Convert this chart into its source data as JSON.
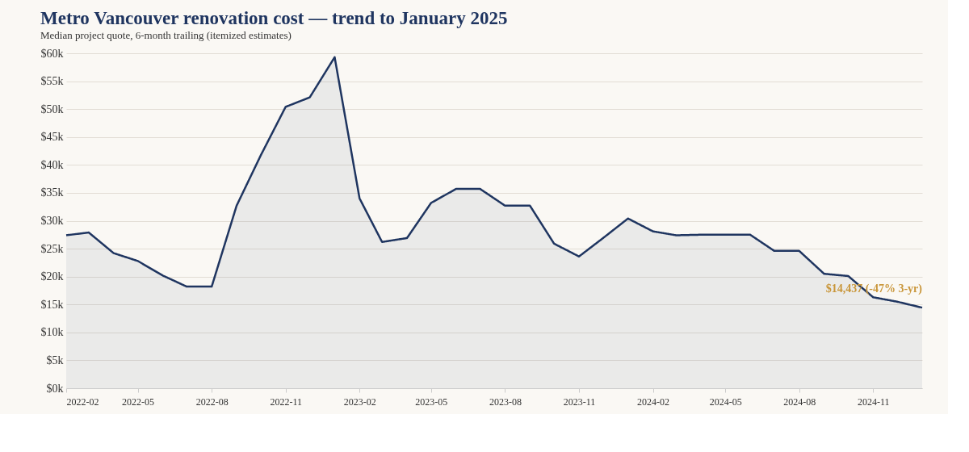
{
  "chart_data": {
    "type": "area",
    "title": "Metro Vancouver renovation cost — trend to January 2025",
    "subtitle": "Median project quote, 6-month trailing (itemized estimates)",
    "x": [
      "2022-02",
      "2022-03",
      "2022-04",
      "2022-05",
      "2022-06",
      "2022-07",
      "2022-08",
      "2022-09",
      "2022-10",
      "2022-11",
      "2022-12",
      "2023-01",
      "2023-02",
      "2023-03",
      "2023-04",
      "2023-05",
      "2023-06",
      "2023-07",
      "2023-08",
      "2023-09",
      "2023-10",
      "2023-11",
      "2023-12",
      "2024-01",
      "2024-02",
      "2024-03",
      "2024-04",
      "2024-05",
      "2024-06",
      "2024-07",
      "2024-08",
      "2024-09",
      "2024-10",
      "2024-11",
      "2024-12",
      "2025-01"
    ],
    "series": [
      {
        "color": "#1f3560",
        "values": [
          27.4,
          27.9,
          24.2,
          22.8,
          20.2,
          18.2,
          18.2,
          32.7,
          41.7,
          50.4,
          52.1,
          59.3,
          34.0,
          26.2,
          26.9,
          33.2,
          35.7,
          35.7,
          32.7,
          32.7,
          25.9,
          23.6,
          26.9,
          30.4,
          28.1,
          27.4,
          27.5,
          27.5,
          27.5,
          24.6,
          24.6,
          20.5,
          20.1,
          16.3,
          15.5,
          14.437
        ]
      }
    ],
    "xlim": [
      "2022-02",
      "2025-01"
    ],
    "xticks": [
      "2022-02",
      "2022-05",
      "2022-08",
      "2022-11",
      "2023-02",
      "2023-05",
      "2023-08",
      "2023-11",
      "2024-02",
      "2024-05",
      "2024-08",
      "2024-11"
    ],
    "ylim": [
      0,
      60
    ],
    "yticks": [
      {
        "value": 0,
        "label": "$0k"
      },
      {
        "value": 5,
        "label": "$5k"
      },
      {
        "value": 10,
        "label": "$10k"
      },
      {
        "value": 15,
        "label": "$15k"
      },
      {
        "value": 20,
        "label": "$20k"
      },
      {
        "value": 25,
        "label": "$25k"
      },
      {
        "value": 30,
        "label": "$30k"
      },
      {
        "value": 35,
        "label": "$35k"
      },
      {
        "value": 40,
        "label": "$40k"
      },
      {
        "value": 45,
        "label": "$45k"
      },
      {
        "value": 50,
        "label": "$50k"
      },
      {
        "value": 55,
        "label": "$55k"
      },
      {
        "value": 60,
        "label": "$60k"
      }
    ],
    "annotations": [
      {
        "text": "$14,437 (-47% 3-yr)",
        "x": "2025-01",
        "y": 14.437
      }
    ],
    "grid": "y",
    "marker": "none",
    "line_style": "solid"
  }
}
